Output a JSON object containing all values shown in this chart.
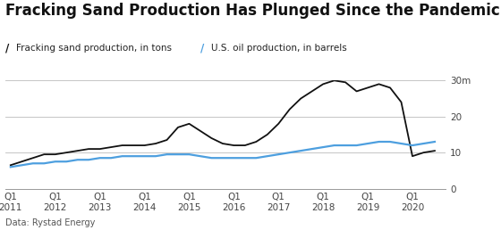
{
  "title": "Fracking Sand Production Has Plunged Since the Pandemic",
  "legend": [
    {
      "label": "Fracking sand production, in tons",
      "color": "#111111"
    },
    {
      "label": "U.S. oil production, in barrels",
      "color": "#4d9fdf"
    }
  ],
  "source": "Data: Rystad Energy",
  "x_tick_labels": [
    "Q1\n2011",
    "Q1\n2012",
    "Q1\n2013",
    "Q1\n2014",
    "Q1\n2015",
    "Q1\n2016",
    "Q1\n2017",
    "Q1\n2018",
    "Q1\n2019",
    "Q1\n2020"
  ],
  "x_positions": [
    0,
    4,
    8,
    12,
    16,
    20,
    24,
    28,
    32,
    36
  ],
  "fracking_x": [
    0,
    1,
    2,
    3,
    4,
    5,
    6,
    7,
    8,
    9,
    10,
    11,
    12,
    13,
    14,
    15,
    16,
    17,
    18,
    19,
    20,
    21,
    22,
    23,
    24,
    25,
    26,
    27,
    28,
    29,
    30,
    31,
    32,
    33,
    34,
    35,
    36,
    37,
    38
  ],
  "fracking_y": [
    6.5,
    7.5,
    8.5,
    9.5,
    9.5,
    10,
    10.5,
    11,
    11,
    11.5,
    12,
    12,
    12,
    12.5,
    13.5,
    17,
    18,
    16,
    14,
    12.5,
    12,
    12,
    13,
    15,
    18,
    22,
    25,
    27,
    29,
    30,
    29.5,
    27,
    28,
    29,
    28,
    24,
    9,
    10,
    10.5
  ],
  "oil_x": [
    0,
    1,
    2,
    3,
    4,
    5,
    6,
    7,
    8,
    9,
    10,
    11,
    12,
    13,
    14,
    15,
    16,
    17,
    18,
    19,
    20,
    21,
    22,
    23,
    24,
    25,
    26,
    27,
    28,
    29,
    30,
    31,
    32,
    33,
    34,
    35,
    36,
    37,
    38
  ],
  "oil_y": [
    6,
    6.5,
    7,
    7,
    7.5,
    7.5,
    8,
    8,
    8.5,
    8.5,
    9,
    9,
    9,
    9,
    9.5,
    9.5,
    9.5,
    9,
    8.5,
    8.5,
    8.5,
    8.5,
    8.5,
    9,
    9.5,
    10,
    10.5,
    11,
    11.5,
    12,
    12,
    12,
    12.5,
    13,
    13,
    12.5,
    12,
    12.5,
    13
  ],
  "ylim": [
    0,
    30
  ],
  "yticks": [
    0,
    10,
    20,
    30
  ],
  "ytick_labels": [
    "0",
    "10",
    "20",
    "30m"
  ],
  "xlim": [
    -0.5,
    39
  ],
  "background_color": "#ffffff",
  "grid_color": "#bbbbbb",
  "title_fontsize": 12,
  "legend_fontsize": 7.5,
  "tick_fontsize": 7.5,
  "source_fontsize": 7
}
